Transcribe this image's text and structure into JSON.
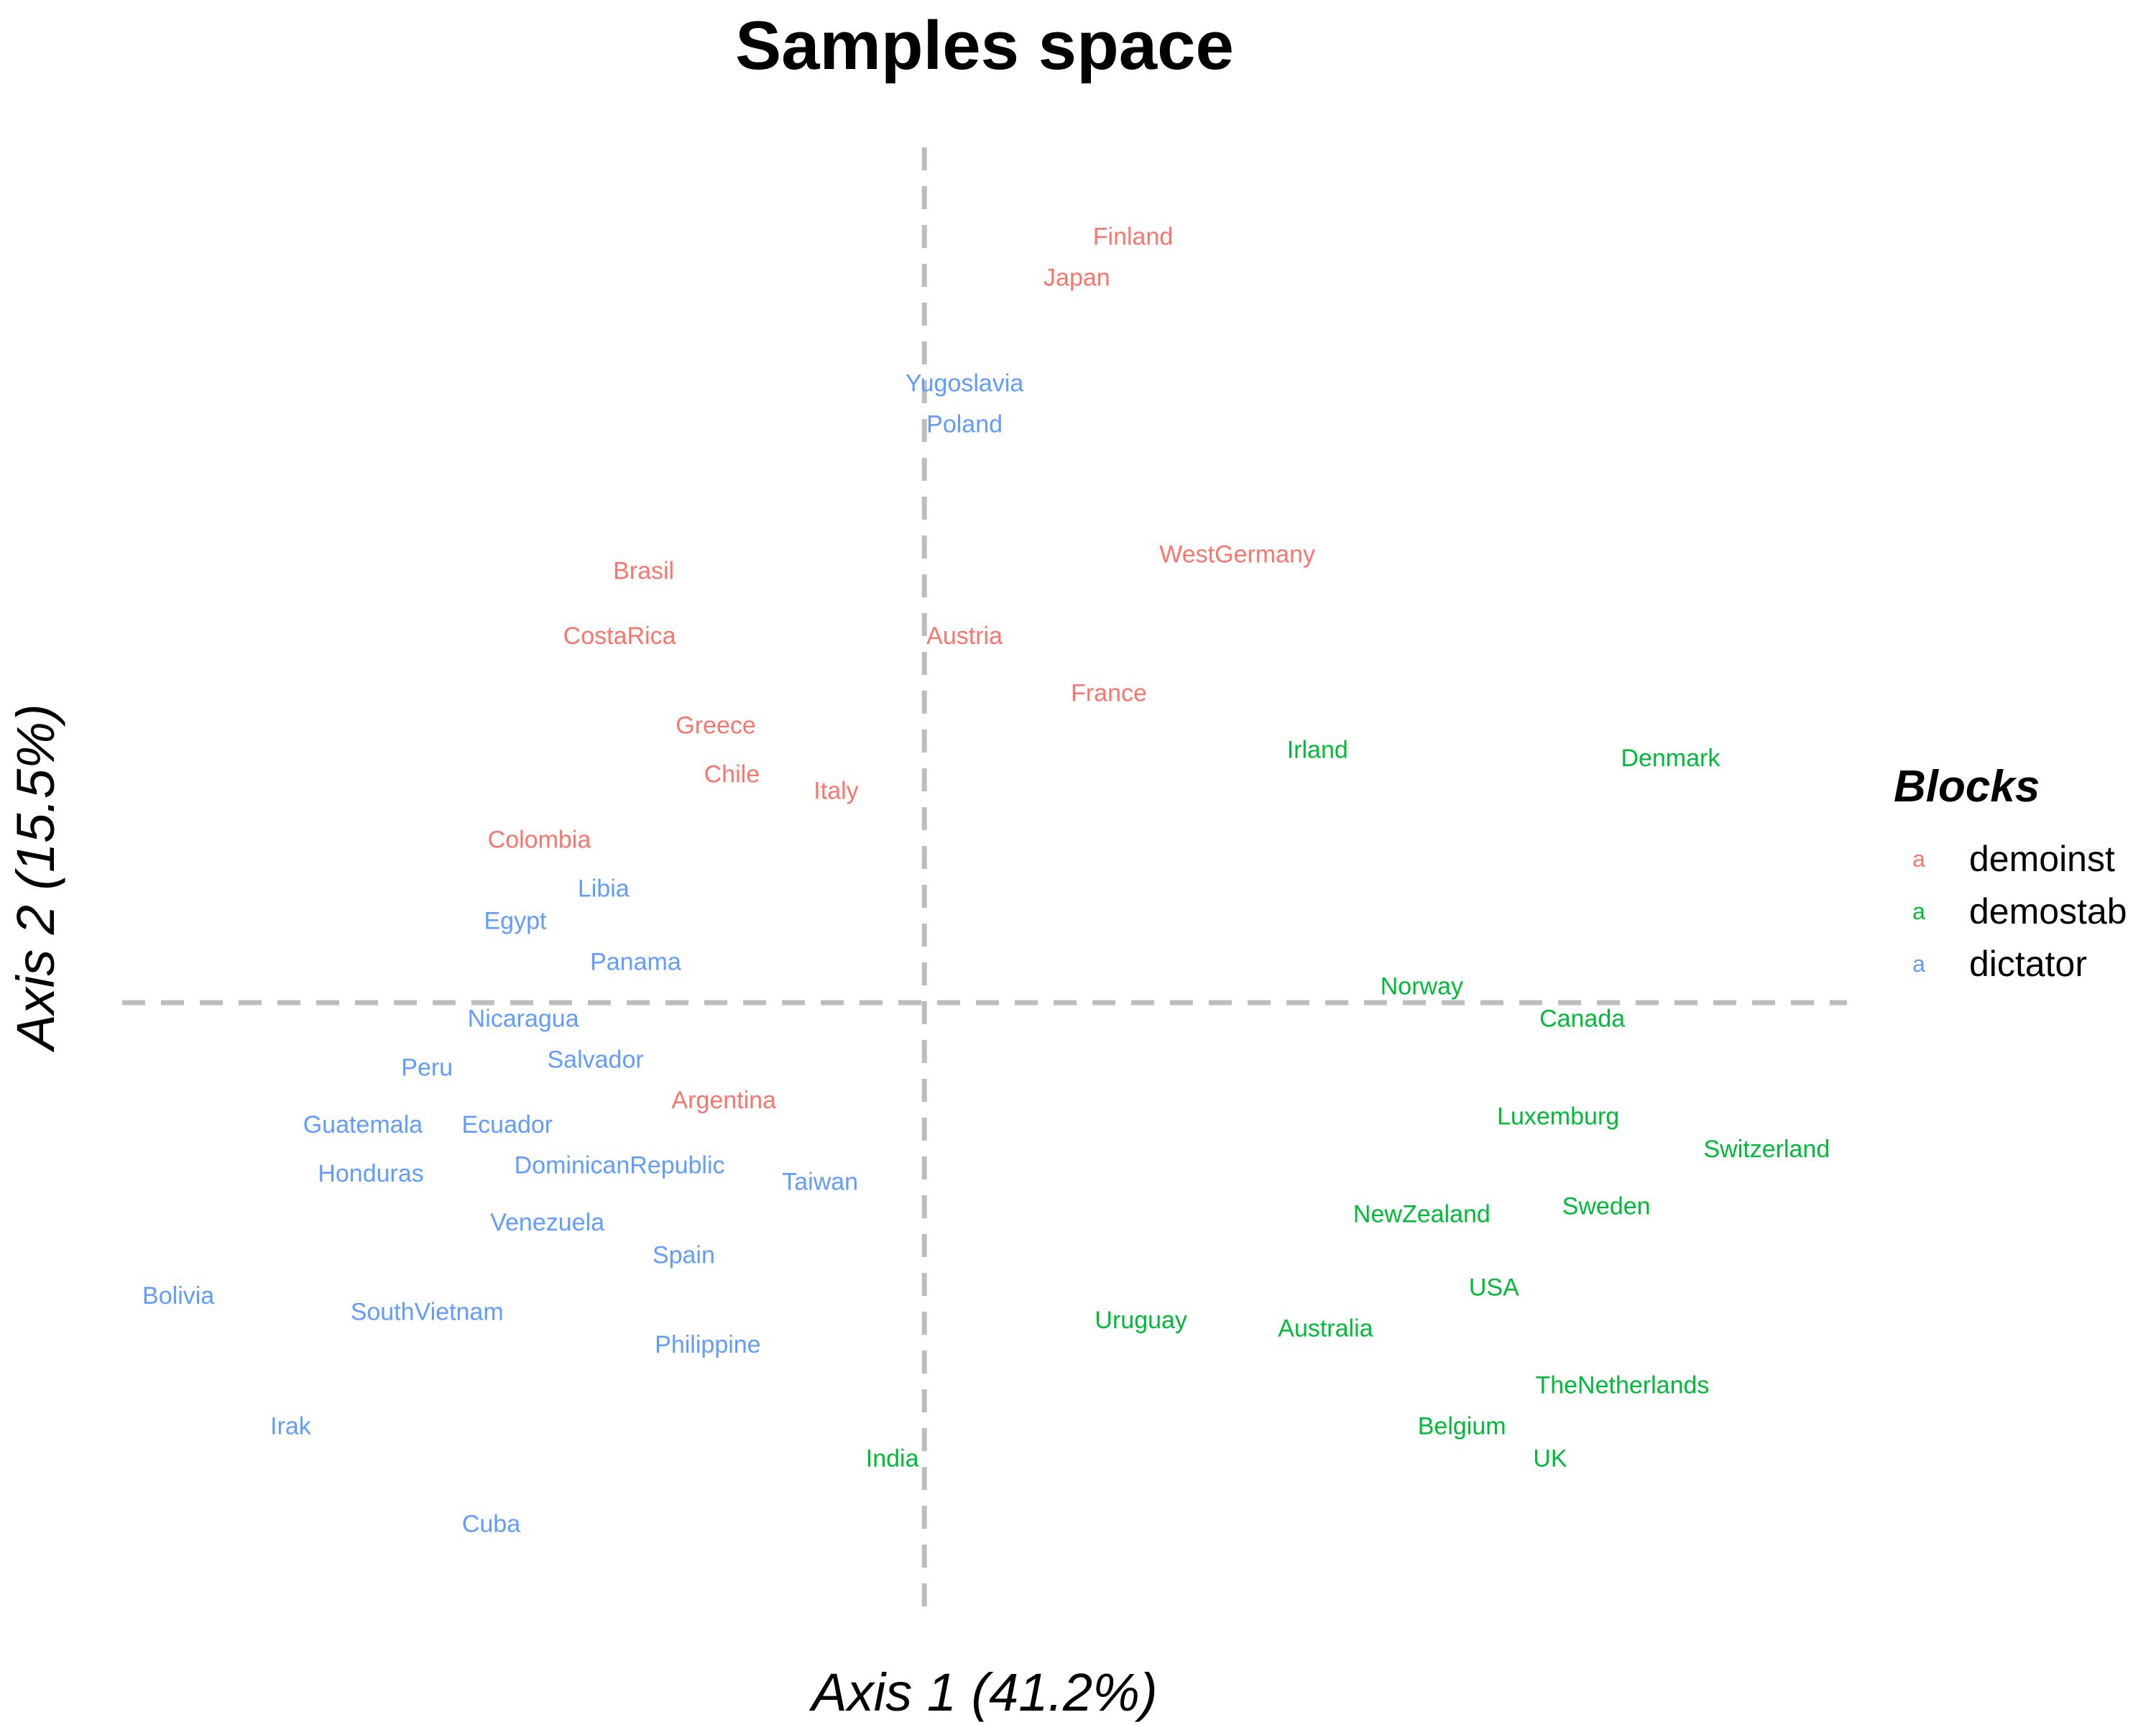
{
  "chart_data": {
    "type": "scatter",
    "title": "Samples space",
    "xlabel": "Axis 1 (41.2%)",
    "ylabel": "Axis 2 (15.5%)",
    "xlim": [
      -1.0,
      1.15
    ],
    "ylim": [
      -0.75,
      1.05
    ],
    "grid": false,
    "reference_lines": {
      "x": 0,
      "y": 0,
      "style": "dashed",
      "color": "#bdbdbd"
    },
    "legend": {
      "title": "Blocks",
      "position": "right",
      "key_glyph": "a",
      "entries": [
        {
          "name": "demoinst",
          "color": "#F8766D"
        },
        {
          "name": "demostab",
          "color": "#00BA38"
        },
        {
          "name": "dictator",
          "color": "#619CFF"
        }
      ]
    },
    "series": [
      {
        "name": "demoinst",
        "color": "#F8766D",
        "points": [
          {
            "label": "Finland",
            "x": 0.26,
            "y": 0.94
          },
          {
            "label": "Japan",
            "x": 0.19,
            "y": 0.89
          },
          {
            "label": "WestGermany",
            "x": 0.39,
            "y": 0.55
          },
          {
            "label": "Brasil",
            "x": -0.35,
            "y": 0.53
          },
          {
            "label": "CostaRica",
            "x": -0.38,
            "y": 0.45
          },
          {
            "label": "Austria",
            "x": 0.05,
            "y": 0.45
          },
          {
            "label": "France",
            "x": 0.23,
            "y": 0.38
          },
          {
            "label": "Greece",
            "x": -0.26,
            "y": 0.34
          },
          {
            "label": "Chile",
            "x": -0.24,
            "y": 0.28
          },
          {
            "label": "Italy",
            "x": -0.11,
            "y": 0.26
          },
          {
            "label": "Colombia",
            "x": -0.48,
            "y": 0.2
          },
          {
            "label": "Argentina",
            "x": -0.25,
            "y": -0.12
          }
        ]
      },
      {
        "name": "demostab",
        "color": "#00BA38",
        "points": [
          {
            "label": "Irland",
            "x": 0.49,
            "y": 0.31
          },
          {
            "label": "Denmark",
            "x": 0.93,
            "y": 0.3
          },
          {
            "label": "Norway",
            "x": 0.62,
            "y": 0.02
          },
          {
            "label": "Canada",
            "x": 0.82,
            "y": -0.02
          },
          {
            "label": "Luxemburg",
            "x": 0.79,
            "y": -0.14
          },
          {
            "label": "Switzerland",
            "x": 1.05,
            "y": -0.18
          },
          {
            "label": "NewZealand",
            "x": 0.62,
            "y": -0.26
          },
          {
            "label": "Sweden",
            "x": 0.85,
            "y": -0.25
          },
          {
            "label": "USA",
            "x": 0.71,
            "y": -0.35
          },
          {
            "label": "Uruguay",
            "x": 0.27,
            "y": -0.39
          },
          {
            "label": "Australia",
            "x": 0.5,
            "y": -0.4
          },
          {
            "label": "TheNetherlands",
            "x": 0.87,
            "y": -0.47
          },
          {
            "label": "Belgium",
            "x": 0.67,
            "y": -0.52
          },
          {
            "label": "UK",
            "x": 0.78,
            "y": -0.56
          },
          {
            "label": "India",
            "x": -0.04,
            "y": -0.56
          }
        ]
      },
      {
        "name": "dictator",
        "color": "#619CFF",
        "points": [
          {
            "label": "Yugoslavia",
            "x": 0.05,
            "y": 0.76
          },
          {
            "label": "Poland",
            "x": 0.05,
            "y": 0.71
          },
          {
            "label": "Libia",
            "x": -0.4,
            "y": 0.14
          },
          {
            "label": "Egypt",
            "x": -0.51,
            "y": 0.1
          },
          {
            "label": "Panama",
            "x": -0.36,
            "y": 0.05
          },
          {
            "label": "Nicaragua",
            "x": -0.5,
            "y": -0.02
          },
          {
            "label": "Salvador",
            "x": -0.41,
            "y": -0.07
          },
          {
            "label": "Peru",
            "x": -0.62,
            "y": -0.08
          },
          {
            "label": "Guatemala",
            "x": -0.7,
            "y": -0.15
          },
          {
            "label": "Ecuador",
            "x": -0.52,
            "y": -0.15
          },
          {
            "label": "Honduras",
            "x": -0.69,
            "y": -0.21
          },
          {
            "label": "DominicanRepublic",
            "x": -0.38,
            "y": -0.2
          },
          {
            "label": "Taiwan",
            "x": -0.13,
            "y": -0.22
          },
          {
            "label": "Venezuela",
            "x": -0.47,
            "y": -0.27
          },
          {
            "label": "Spain",
            "x": -0.3,
            "y": -0.31
          },
          {
            "label": "Bolivia",
            "x": -0.93,
            "y": -0.36
          },
          {
            "label": "SouthVietnam",
            "x": -0.62,
            "y": -0.38
          },
          {
            "label": "Philippine",
            "x": -0.27,
            "y": -0.42
          },
          {
            "label": "Irak",
            "x": -0.79,
            "y": -0.52
          },
          {
            "label": "Cuba",
            "x": -0.54,
            "y": -0.64
          }
        ]
      }
    ]
  }
}
